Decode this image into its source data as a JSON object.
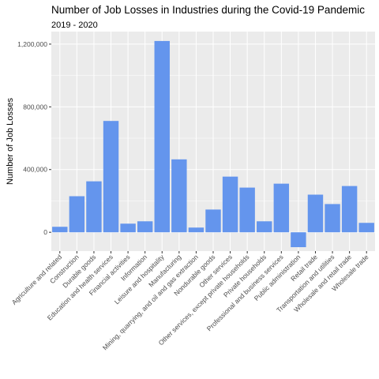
{
  "chart_data": {
    "type": "bar",
    "title": "Number of Job Losses in Industries during the Covid-19 Pandemic",
    "subtitle": "2019 - 2020",
    "xlabel": "",
    "ylabel": "Number of Job Losses",
    "ylim": [
      -120000,
      1280000
    ],
    "yticks": [
      0,
      400000,
      800000,
      1200000
    ],
    "ytick_labels": [
      "0",
      "400,000",
      "800,000",
      "1,200,000"
    ],
    "grid": true,
    "legend": "none",
    "bar_color": "#6495ED",
    "panel_color": "#EBEBEB",
    "grid_color": "#FFFFFF",
    "categories": [
      "Agriculture and related",
      "Construction",
      "Durable goods",
      "Education and health services",
      "Financial activities",
      "Information",
      "Leisure and hospitality",
      "Manufacturing",
      "Mining, quarrying, and oil and gas extraction",
      "Nondurable goods",
      "Other services",
      "Other services, except private households",
      "Private households",
      "Professional and business services",
      "Public administration",
      "Retail trade",
      "Transportation and utilities",
      "Wholesale and retail trade",
      "Wholesale trade"
    ],
    "values": [
      35000,
      230000,
      325000,
      710000,
      55000,
      70000,
      1220000,
      465000,
      30000,
      145000,
      355000,
      285000,
      70000,
      310000,
      -95000,
      240000,
      180000,
      295000,
      60000
    ]
  }
}
